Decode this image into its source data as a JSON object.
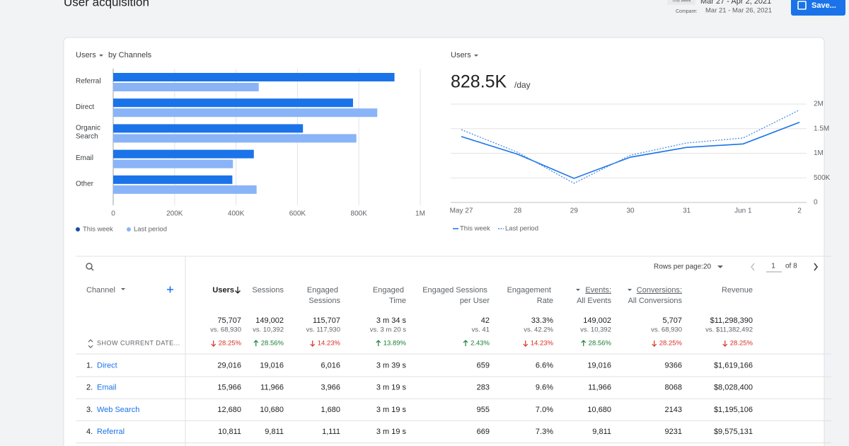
{
  "header": {
    "title": "User acquisition",
    "period_label": "This week",
    "period": "Mar 27 - Apr 2, 2021",
    "compare_label": "Compare:",
    "compare_period": "Mar 21 - Mar 26, 2021",
    "save_button": "Save..."
  },
  "chart_data": [
    {
      "type": "bar",
      "orientation": "horizontal",
      "metric": "Users",
      "title": "by Channels",
      "categories": [
        "Referral",
        "Direct",
        "Organic Search",
        "Email",
        "Other"
      ],
      "series": [
        {
          "name": "This week",
          "color": "#1a73e8",
          "values": [
            916000,
            781000,
            618000,
            458000,
            388000
          ]
        },
        {
          "name": "Last period",
          "color": "#8ab4f8",
          "values": [
            474000,
            860000,
            792000,
            390000,
            467000
          ]
        }
      ],
      "xlim": [
        0,
        1000000
      ],
      "xticks": [
        0,
        {
          "value": 200000,
          "label": "200K"
        },
        {
          "value": 400000,
          "label": "400K"
        },
        {
          "value": 600000,
          "label": "600K"
        },
        {
          "value": 800000,
          "label": "800K"
        },
        {
          "value": 1000000,
          "label": "1M"
        }
      ],
      "grid": true
    },
    {
      "type": "line",
      "metric": "Users",
      "headline": "828.5K",
      "headline_unit": "/day",
      "categories": [
        "May 27",
        "28",
        "29",
        "30",
        "31",
        "Jun 1",
        "2"
      ],
      "series": [
        {
          "name": "This week",
          "color": "#1a73e8",
          "dash": "solid",
          "values": [
            1340000,
            980000,
            490000,
            920000,
            1120000,
            1190000,
            1630000
          ]
        },
        {
          "name": "Last period",
          "color": "#4a8ee8",
          "dash": "dotted",
          "values": [
            1480000,
            1020000,
            390000,
            960000,
            1210000,
            1310000,
            1880000
          ]
        }
      ],
      "ylim": [
        0,
        2000000
      ],
      "yticks": [
        0,
        {
          "value": 500000,
          "label": "500K"
        },
        {
          "value": 1000000,
          "label": "1M"
        },
        {
          "value": 1500000,
          "label": "1.5M"
        },
        {
          "value": 2000000,
          "label": "2M"
        }
      ],
      "grid": true
    }
  ],
  "table": {
    "rows_per_page_label": "Rows per page:",
    "rows_per_page": "20",
    "page": "1",
    "page_total": "of 8",
    "show_dates": "SHOW CURRENT DATE...",
    "columns": [
      {
        "label": "Channel"
      },
      {
        "label": "Users"
      },
      {
        "label": "Sessions"
      },
      {
        "label": "Engaged Sessions"
      },
      {
        "label": "Engaged Time"
      },
      {
        "label": "Engaged Sessions per User"
      },
      {
        "label": "Engagement Rate"
      },
      {
        "label": "Events:",
        "sub": "All Events"
      },
      {
        "label": "Conversions:",
        "sub": "All Conversions"
      },
      {
        "label": "Revenue"
      }
    ],
    "totals": [
      {
        "value": "75,707",
        "compare": "vs. 68,930",
        "change": "28.25%",
        "direction": "down"
      },
      {
        "value": "149,002",
        "compare": "vs. 10,392",
        "change": "28.56%",
        "direction": "up"
      },
      {
        "value": "115,707",
        "compare": "vs. 117,930",
        "change": "14.23%",
        "direction": "down"
      },
      {
        "value": "3 m 34 s",
        "compare": "vs. 3 m 20 s",
        "change": "13.89%",
        "direction": "up"
      },
      {
        "value": "42",
        "compare": "vs. 41",
        "change": "2.43%",
        "direction": "up"
      },
      {
        "value": "33.3%",
        "compare": "vs. 42.2%",
        "change": "14.23%",
        "direction": "down"
      },
      {
        "value": "149,002",
        "compare": "vs. 10,392",
        "change": "28.56%",
        "direction": "up"
      },
      {
        "value": "5,707",
        "compare": "vs. 68,930",
        "change": "28.25%",
        "direction": "down"
      },
      {
        "value": "$11,298,390",
        "compare": "vs. $11,382,492",
        "change": "28.25%",
        "direction": "down"
      }
    ],
    "rows": [
      {
        "rank": "1.",
        "channel": "Direct",
        "cells": [
          "29,016",
          "19,016",
          "6,016",
          "3 m 39 s",
          "659",
          "6.6%",
          "19,016",
          "9366",
          "$1,619,166"
        ]
      },
      {
        "rank": "2.",
        "channel": "Email",
        "cells": [
          "15,966",
          "11,966",
          "3,966",
          "3 m 19 s",
          "283",
          "9.6%",
          "11,966",
          "8068",
          "$8,028,400"
        ]
      },
      {
        "rank": "3.",
        "channel": "Web Search",
        "cells": [
          "12,680",
          "10,680",
          "1,680",
          "3 m 19 s",
          "955",
          "7.0%",
          "10,680",
          "2143",
          "$1,195,106"
        ]
      },
      {
        "rank": "4.",
        "channel": "Referral",
        "cells": [
          "10,811",
          "9,811",
          "1,111",
          "3 m 19 s",
          "669",
          "7.3%",
          "9,811",
          "9231",
          "$9,575,131"
        ]
      }
    ]
  }
}
